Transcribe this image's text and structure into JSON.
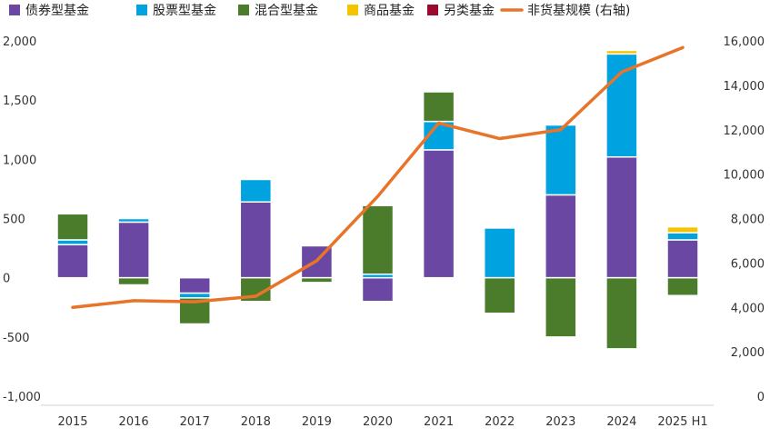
{
  "chart_data": {
    "type": "bar",
    "title": "",
    "xlabel": "",
    "ylabel": "",
    "categories": [
      "2015",
      "2016",
      "2017",
      "2018",
      "2019",
      "2020",
      "2021",
      "2022",
      "2023",
      "2024",
      "2025 H1"
    ],
    "ylim": [
      -1000,
      2000
    ],
    "ylim_right": [
      0,
      16000
    ],
    "yticks_left": [
      "2,000",
      "1,500",
      "1,000",
      "500",
      "0",
      "-500",
      "-1,000"
    ],
    "yticks_right": [
      "16,000",
      "14,000",
      "12,000",
      "10,000",
      "8,000",
      "6,000",
      "4,000",
      "2,000",
      "0"
    ],
    "series": [
      {
        "name": "债券型基金",
        "color": "#6a47a3",
        "values": [
          280,
          470,
          -130,
          640,
          270,
          -200,
          1080,
          0,
          700,
          1020,
          320
        ]
      },
      {
        "name": "股票型基金",
        "color": "#00a3e0",
        "values": [
          40,
          30,
          -40,
          190,
          0,
          30,
          240,
          420,
          590,
          870,
          60
        ]
      },
      {
        "name": "混合型基金",
        "color": "#4a7c2b",
        "values": [
          220,
          -60,
          -220,
          -200,
          -40,
          580,
          250,
          -300,
          -500,
          -600,
          -150
        ]
      },
      {
        "name": "商品基金",
        "color": "#f5c400",
        "values": [
          0,
          0,
          0,
          0,
          0,
          0,
          0,
          0,
          0,
          30,
          50
        ]
      },
      {
        "name": "另类基金",
        "color": "#9b0a2e",
        "values": [
          0,
          0,
          0,
          0,
          0,
          0,
          0,
          0,
          0,
          0,
          0
        ]
      }
    ],
    "line": {
      "name": "非货基规模 (右轴)",
      "color": "#e8742a",
      "values": [
        4000,
        4300,
        4250,
        4500,
        6100,
        9000,
        12300,
        11600,
        12000,
        14600,
        15700
      ]
    },
    "legend_position": "top"
  }
}
